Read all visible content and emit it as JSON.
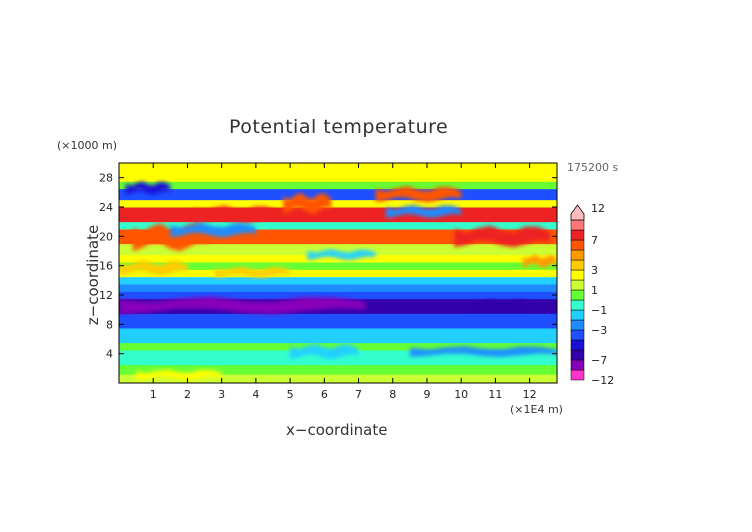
{
  "chart_data": {
    "type": "heatmap",
    "title": "Potential temperature",
    "xlabel": "x−coordinate",
    "ylabel": "z−coordinate",
    "x_unit_label": "(×1E4 m)",
    "y_unit_label": "(×1000 m)",
    "time_label": "175200 s",
    "xlim": [
      0,
      12.8
    ],
    "ylim": [
      0,
      30
    ],
    "x_ticks": [
      1,
      2,
      3,
      4,
      5,
      6,
      7,
      8,
      9,
      10,
      11,
      12
    ],
    "y_ticks": [
      4,
      8,
      12,
      16,
      20,
      24,
      28
    ],
    "colorbar": {
      "min": -12,
      "max": 12,
      "labeled_levels": [
        12,
        7,
        3,
        1,
        -1,
        -3,
        -7,
        -12
      ],
      "levels": [
        -12,
        -9,
        -7,
        -5,
        -4,
        -3,
        -2,
        -1,
        0,
        1,
        2,
        3,
        4,
        5,
        7,
        9,
        12
      ],
      "colors": [
        "#ff33cc",
        "#8800bb",
        "#3300aa",
        "#1a10d8",
        "#1e50ff",
        "#1e8cff",
        "#22d0ff",
        "#33ffcc",
        "#66ff33",
        "#ccff33",
        "#ffff00",
        "#ffcc00",
        "#ff9900",
        "#ff5500",
        "#ee2222",
        "#ff7777",
        "#ffbbbb"
      ]
    },
    "bands": [
      {
        "z": [
          0,
          1.2
        ],
        "value": 1.5
      },
      {
        "z": [
          1.2,
          2.5
        ],
        "value": 0.5
      },
      {
        "z": [
          2.5,
          4.5
        ],
        "value": -1.0
      },
      {
        "z": [
          4.5,
          5.5
        ],
        "value": 0.3
      },
      {
        "z": [
          5.5,
          7.5
        ],
        "value": -1.5
      },
      {
        "z": [
          7.5,
          9.5
        ],
        "value": -3.5
      },
      {
        "z": [
          9.5,
          11.5
        ],
        "value": -5.5
      },
      {
        "z": [
          11.5,
          12.5
        ],
        "value": -3.5
      },
      {
        "z": [
          12.5,
          13.5
        ],
        "value": -2.5
      },
      {
        "z": [
          13.5,
          14.5
        ],
        "value": -1.5
      },
      {
        "z": [
          14.5,
          15.5
        ],
        "value": 2.5
      },
      {
        "z": [
          15.5,
          16.5
        ],
        "value": 0.5
      },
      {
        "z": [
          16.5,
          17.5
        ],
        "value": 2.0
      },
      {
        "z": [
          17.5,
          19.0
        ],
        "value": 1.0
      },
      {
        "z": [
          19.0,
          21.0
        ],
        "value": 5.0
      },
      {
        "z": [
          21.0,
          22.0
        ],
        "value": -0.5
      },
      {
        "z": [
          22.0,
          24.0
        ],
        "value": 7.5
      },
      {
        "z": [
          24.0,
          25.0
        ],
        "value": 2.5
      },
      {
        "z": [
          25.0,
          26.5
        ],
        "value": -3.5
      },
      {
        "z": [
          26.5,
          27.5
        ],
        "value": 0.5
      },
      {
        "z": [
          27.5,
          30.0
        ],
        "value": 2.0
      }
    ],
    "features": [
      {
        "x": [
          0.4,
          2.6
        ],
        "z": [
          18.6,
          21.2
        ],
        "value": 5.5
      },
      {
        "x": [
          2.2,
          4.6
        ],
        "z": [
          22.2,
          23.8
        ],
        "value": 8.5
      },
      {
        "x": [
          4.8,
          6.2
        ],
        "z": [
          23.5,
          25.5
        ],
        "value": 5.0
      },
      {
        "x": [
          7.5,
          10.0
        ],
        "z": [
          25.0,
          26.5
        ],
        "value": 5.5
      },
      {
        "x": [
          7.8,
          10.0
        ],
        "z": [
          22.8,
          24.0
        ],
        "value": -2.5
      },
      {
        "x": [
          1.5,
          4.0
        ],
        "z": [
          20.2,
          21.5
        ],
        "value": -3.0
      },
      {
        "x": [
          0.2,
          1.5
        ],
        "z": [
          26.0,
          27.2
        ],
        "value": -5.0
      },
      {
        "x": [
          9.8,
          12.6
        ],
        "z": [
          19.0,
          21.0
        ],
        "value": 7.5
      },
      {
        "x": [
          11.8,
          12.8
        ],
        "z": [
          16.0,
          17.2
        ],
        "value": 4.5
      },
      {
        "x": [
          5.5,
          7.5
        ],
        "z": [
          17.0,
          18.0
        ],
        "value": -1.5
      },
      {
        "x": [
          0.0,
          2.0
        ],
        "z": [
          15.0,
          16.4
        ],
        "value": 3.0
      },
      {
        "x": [
          2.8,
          5.0
        ],
        "z": [
          14.6,
          15.6
        ],
        "value": 3.5
      },
      {
        "x": [
          0.0,
          7.2
        ],
        "z": [
          9.8,
          11.4
        ],
        "value": -7.5
      },
      {
        "x": [
          10.3,
          12.0
        ],
        "z": [
          10.2,
          11.2
        ],
        "value": -7.0
      },
      {
        "x": [
          5.0,
          7.0
        ],
        "z": [
          3.6,
          5.0
        ],
        "value": -2.0
      },
      {
        "x": [
          8.5,
          12.8
        ],
        "z": [
          3.8,
          4.8
        ],
        "value": -2.5
      },
      {
        "x": [
          0.5,
          3.0
        ],
        "z": [
          0.6,
          1.6
        ],
        "value": 2.0
      }
    ]
  }
}
